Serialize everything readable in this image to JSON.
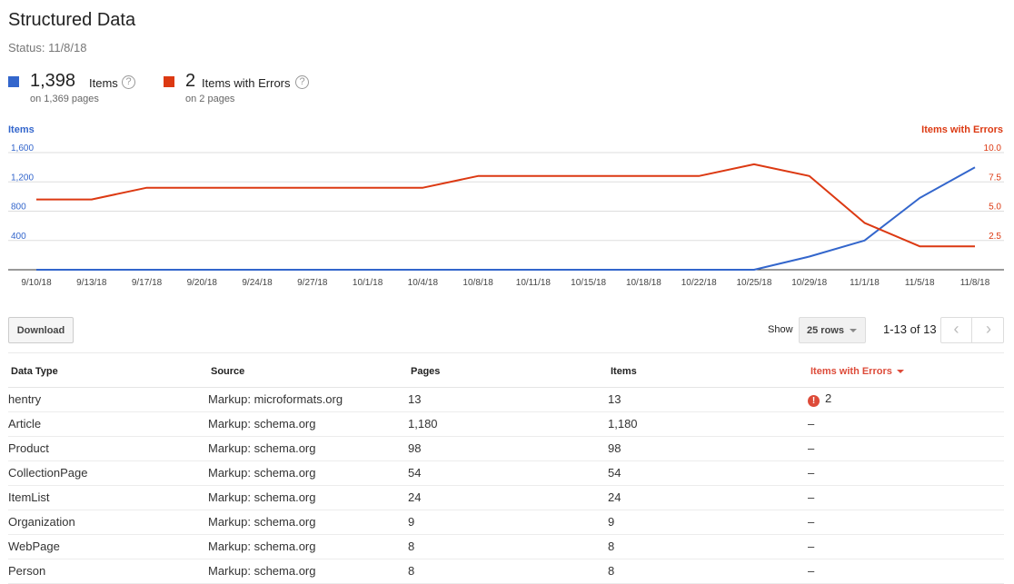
{
  "header": {
    "title": "Structured Data",
    "status": "Status: 11/8/18"
  },
  "metrics": {
    "items": {
      "value": "1,398",
      "label": "Items",
      "sub": "on 1,369 pages",
      "color": "#3366cc"
    },
    "errors": {
      "value": "2",
      "label": "Items with Errors",
      "sub": "on 2 pages",
      "color": "#dc3912"
    }
  },
  "help_glyph": "?",
  "chart_data": {
    "type": "line",
    "x": [
      "9/10/18",
      "9/13/18",
      "9/17/18",
      "9/20/18",
      "9/24/18",
      "9/27/18",
      "10/1/18",
      "10/4/18",
      "10/8/18",
      "10/11/18",
      "10/15/18",
      "10/18/18",
      "10/22/18",
      "10/25/18",
      "10/29/18",
      "11/1/18",
      "11/5/18",
      "11/8/18"
    ],
    "left_axis": {
      "label": "Items",
      "ticks": [
        "1,600",
        "1,200",
        "800",
        "400"
      ],
      "ylim": [
        0,
        1600
      ],
      "color": "#3366cc"
    },
    "right_axis": {
      "label": "Items with Errors",
      "ticks": [
        "10.0",
        "7.5",
        "5.0",
        "2.5"
      ],
      "ylim": [
        0,
        10
      ],
      "color": "#dc3912"
    },
    "series": [
      {
        "name": "Items",
        "axis": "left",
        "color": "#3366cc",
        "values": [
          0,
          0,
          0,
          0,
          0,
          0,
          0,
          0,
          0,
          0,
          0,
          0,
          0,
          0,
          180,
          400,
          980,
          1398
        ]
      },
      {
        "name": "Items with Errors",
        "axis": "right",
        "color": "#dc3912",
        "values": [
          6,
          6,
          7,
          7,
          7,
          7,
          7,
          7,
          8,
          8,
          8,
          8,
          8,
          9,
          8,
          4,
          2,
          2
        ]
      }
    ],
    "grid": true
  },
  "toolbar": {
    "download_label": "Download",
    "show_label": "Show",
    "rows_value": "25 rows",
    "range_text": "1-13 of 13",
    "prev_glyph": "‹",
    "next_glyph": "›"
  },
  "table": {
    "headers": [
      "Data Type",
      "Source",
      "Pages",
      "Items",
      "Items with Errors"
    ],
    "rows": [
      {
        "type": "hentry",
        "source": "Markup: microformats.org",
        "pages": "13",
        "items": "13",
        "errors": "2",
        "has_error": true
      },
      {
        "type": "Article",
        "source": "Markup: schema.org",
        "pages": "1,180",
        "items": "1,180",
        "errors": "–"
      },
      {
        "type": "Product",
        "source": "Markup: schema.org",
        "pages": "98",
        "items": "98",
        "errors": "–"
      },
      {
        "type": "CollectionPage",
        "source": "Markup: schema.org",
        "pages": "54",
        "items": "54",
        "errors": "–"
      },
      {
        "type": "ItemList",
        "source": "Markup: schema.org",
        "pages": "24",
        "items": "24",
        "errors": "–"
      },
      {
        "type": "Organization",
        "source": "Markup: schema.org",
        "pages": "9",
        "items": "9",
        "errors": "–"
      },
      {
        "type": "WebPage",
        "source": "Markup: schema.org",
        "pages": "8",
        "items": "8",
        "errors": "–"
      },
      {
        "type": "Person",
        "source": "Markup: schema.org",
        "pages": "8",
        "items": "8",
        "errors": "–"
      }
    ],
    "error_icon_glyph": "!"
  }
}
